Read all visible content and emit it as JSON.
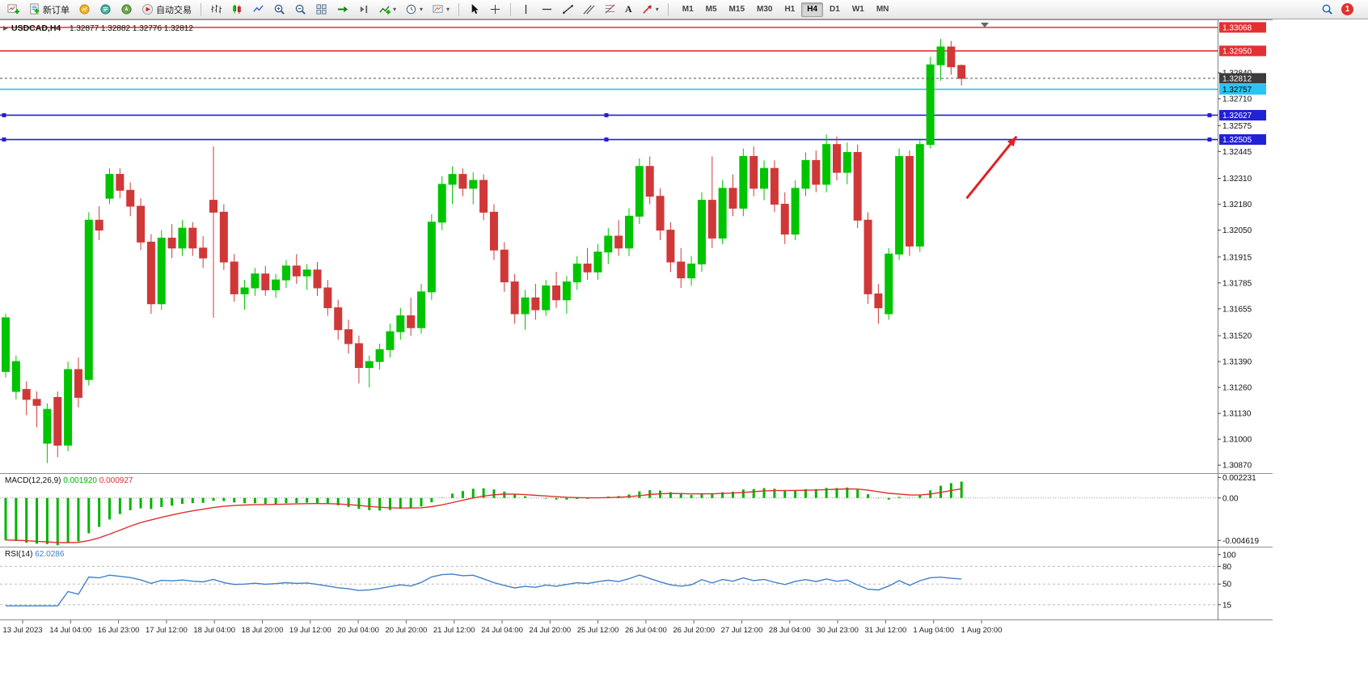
{
  "toolbar": {
    "new_order_label": "新订单",
    "autotrading_label": "自动交易",
    "timeframes": [
      "M1",
      "M5",
      "M15",
      "M30",
      "H1",
      "H4",
      "D1",
      "W1",
      "MN"
    ],
    "active_timeframe": "H4",
    "notification_count": "1"
  },
  "chart": {
    "symbol_label": "USDCAD,H4",
    "ohlc_label": "1.32877 1.32882 1.32776 1.32812"
  },
  "chart_data": {
    "type": "candlestick",
    "symbol": "USDCAD",
    "timeframe": "H4",
    "grid": "off",
    "ylim": [
      1.3083,
      1.331
    ],
    "colors": {
      "bullish": "#00C400",
      "bearish": "#D03838",
      "macd_histogram": "#00B400",
      "macd_signal": "#E03030",
      "rsi_line": "#4080C8",
      "current_price_badge": "#3C3C3C",
      "arrow": "#DD2222"
    },
    "candles": [
      [
        1.3134,
        1.3163,
        1.3131,
        1.3161
      ],
      [
        1.3124,
        1.3142,
        1.312,
        1.3139
      ],
      [
        1.3125,
        1.3129,
        1.3112,
        1.312
      ],
      [
        1.312,
        1.3124,
        1.3106,
        1.3117
      ],
      [
        1.3098,
        1.3118,
        1.3088,
        1.3115
      ],
      [
        1.3121,
        1.3124,
        1.3091,
        1.3097
      ],
      [
        1.3097,
        1.3139,
        1.3094,
        1.3135
      ],
      [
        1.3135,
        1.3141,
        1.3116,
        1.3121
      ],
      [
        1.313,
        1.3214,
        1.3127,
        1.321
      ],
      [
        1.321,
        1.3217,
        1.32,
        1.3205
      ],
      [
        1.3221,
        1.3236,
        1.3218,
        1.3233
      ],
      [
        1.3233,
        1.3236,
        1.3221,
        1.3225
      ],
      [
        1.3225,
        1.3229,
        1.3212,
        1.3217
      ],
      [
        1.3217,
        1.3221,
        1.3195,
        1.3199
      ],
      [
        1.3199,
        1.3203,
        1.3163,
        1.3168
      ],
      [
        1.3168,
        1.3205,
        1.3165,
        1.3201
      ],
      [
        1.3201,
        1.3208,
        1.3191,
        1.3196
      ],
      [
        1.3196,
        1.321,
        1.3192,
        1.3206
      ],
      [
        1.3206,
        1.3209,
        1.3192,
        1.3196
      ],
      [
        1.3196,
        1.3202,
        1.3186,
        1.3191
      ],
      [
        1.322,
        1.3247,
        1.3161,
        1.3214
      ],
      [
        1.3214,
        1.3218,
        1.3185,
        1.3189
      ],
      [
        1.3189,
        1.3193,
        1.3169,
        1.3173
      ],
      [
        1.3173,
        1.318,
        1.3165,
        1.3176
      ],
      [
        1.3176,
        1.3186,
        1.3172,
        1.3183
      ],
      [
        1.3183,
        1.3187,
        1.3172,
        1.3175
      ],
      [
        1.3175,
        1.3183,
        1.3171,
        1.318
      ],
      [
        1.318,
        1.319,
        1.3176,
        1.3187
      ],
      [
        1.3187,
        1.3193,
        1.3178,
        1.3182
      ],
      [
        1.3182,
        1.3188,
        1.3175,
        1.3185
      ],
      [
        1.3185,
        1.3189,
        1.3172,
        1.3176
      ],
      [
        1.3176,
        1.318,
        1.3162,
        1.3166
      ],
      [
        1.3166,
        1.317,
        1.315,
        1.3155
      ],
      [
        1.3155,
        1.316,
        1.3143,
        1.3148
      ],
      [
        1.3148,
        1.3152,
        1.3128,
        1.3136
      ],
      [
        1.3136,
        1.3142,
        1.3126,
        1.3139
      ],
      [
        1.3139,
        1.3148,
        1.3135,
        1.3145
      ],
      [
        1.3145,
        1.3158,
        1.3141,
        1.3154
      ],
      [
        1.3154,
        1.3166,
        1.315,
        1.3162
      ],
      [
        1.3162,
        1.3171,
        1.3152,
        1.3156
      ],
      [
        1.3156,
        1.3178,
        1.3153,
        1.3174
      ],
      [
        1.3174,
        1.3213,
        1.317,
        1.3209
      ],
      [
        1.3209,
        1.3232,
        1.3205,
        1.3228
      ],
      [
        1.3228,
        1.3237,
        1.3218,
        1.3233
      ],
      [
        1.3233,
        1.3236,
        1.3222,
        1.3226
      ],
      [
        1.3226,
        1.3234,
        1.3218,
        1.323
      ],
      [
        1.323,
        1.3233,
        1.321,
        1.3214
      ],
      [
        1.3214,
        1.3218,
        1.319,
        1.3195
      ],
      [
        1.3195,
        1.3199,
        1.3174,
        1.3179
      ],
      [
        1.3179,
        1.3183,
        1.3158,
        1.3163
      ],
      [
        1.3163,
        1.3175,
        1.3155,
        1.3171
      ],
      [
        1.3171,
        1.3178,
        1.316,
        1.3165
      ],
      [
        1.3165,
        1.318,
        1.3162,
        1.3177
      ],
      [
        1.3177,
        1.3184,
        1.3166,
        1.317
      ],
      [
        1.317,
        1.3182,
        1.3163,
        1.3179
      ],
      [
        1.3179,
        1.3192,
        1.3175,
        1.3188
      ],
      [
        1.3188,
        1.3196,
        1.318,
        1.3184
      ],
      [
        1.3184,
        1.3198,
        1.318,
        1.3194
      ],
      [
        1.3194,
        1.3206,
        1.3188,
        1.3202
      ],
      [
        1.3202,
        1.321,
        1.3192,
        1.3196
      ],
      [
        1.3196,
        1.3216,
        1.3192,
        1.3212
      ],
      [
        1.3212,
        1.3241,
        1.3208,
        1.3237
      ],
      [
        1.3237,
        1.3242,
        1.3218,
        1.3222
      ],
      [
        1.3222,
        1.3226,
        1.32,
        1.3205
      ],
      [
        1.3205,
        1.3209,
        1.3184,
        1.3189
      ],
      [
        1.3189,
        1.3196,
        1.3176,
        1.3181
      ],
      [
        1.3181,
        1.3192,
        1.3177,
        1.3188
      ],
      [
        1.3188,
        1.3224,
        1.3184,
        1.322
      ],
      [
        1.322,
        1.3242,
        1.3196,
        1.3201
      ],
      [
        1.3201,
        1.323,
        1.3198,
        1.3226
      ],
      [
        1.3226,
        1.3233,
        1.3212,
        1.3216
      ],
      [
        1.3216,
        1.3246,
        1.3212,
        1.3242
      ],
      [
        1.3242,
        1.3247,
        1.3222,
        1.3226
      ],
      [
        1.3226,
        1.324,
        1.322,
        1.3236
      ],
      [
        1.3236,
        1.324,
        1.3214,
        1.3218
      ],
      [
        1.3218,
        1.3224,
        1.3198,
        1.3203
      ],
      [
        1.3203,
        1.323,
        1.32,
        1.3226
      ],
      [
        1.3226,
        1.3244,
        1.3222,
        1.324
      ],
      [
        1.324,
        1.3245,
        1.3224,
        1.3228
      ],
      [
        1.3228,
        1.3253,
        1.3224,
        1.3248
      ],
      [
        1.3248,
        1.3252,
        1.323,
        1.3234
      ],
      [
        1.3234,
        1.3249,
        1.3228,
        1.3244
      ],
      [
        1.3244,
        1.3248,
        1.3206,
        1.321
      ],
      [
        1.321,
        1.3214,
        1.3168,
        1.3173
      ],
      [
        1.3173,
        1.3178,
        1.3158,
        1.3166
      ],
      [
        1.3163,
        1.3196,
        1.316,
        1.3193
      ],
      [
        1.3193,
        1.3246,
        1.319,
        1.3242
      ],
      [
        1.3242,
        1.3245,
        1.3192,
        1.3197
      ],
      [
        1.3197,
        1.3251,
        1.3194,
        1.3248
      ],
      [
        1.3248,
        1.3292,
        1.3246,
        1.3288
      ],
      [
        1.3288,
        1.3301,
        1.328,
        1.3297
      ],
      [
        1.3297,
        1.33,
        1.3283,
        1.3287
      ],
      [
        1.32877,
        1.32882,
        1.32776,
        1.32812
      ]
    ],
    "hlines": [
      {
        "price": 1.33068,
        "label": "1.33068",
        "color": "#E43030",
        "text_color": "#ffffff",
        "handles": false
      },
      {
        "price": 1.3295,
        "label": "1.32950",
        "color": "#E43030",
        "text_color": "#ffffff",
        "handles": false
      },
      {
        "price": 1.32757,
        "label": "1.32757",
        "color": "#29C5F2",
        "text_color": "#000000",
        "handles": false
      },
      {
        "price": 1.32627,
        "label": "1.32627",
        "color": "#2121D6",
        "text_color": "#ffffff",
        "handles": true
      },
      {
        "price": 1.32505,
        "label": "1.32505",
        "color": "#2121D6",
        "text_color": "#ffffff",
        "handles": true
      }
    ],
    "current_price": {
      "value": 1.32812,
      "label": "1.32812"
    },
    "price_scale_ticks": [
      "1.32840",
      "1.32710",
      "1.32575",
      "1.32445",
      "1.32310",
      "1.32180",
      "1.32050",
      "1.31915",
      "1.31785",
      "1.31655",
      "1.31520",
      "1.31390",
      "1.31260",
      "1.31130",
      "1.31000",
      "1.30870"
    ],
    "macd": {
      "title": "MACD(12,26,9)",
      "value_main": "0.001920",
      "value_signal": "0.000927",
      "ylim": [
        -0.0053,
        0.00262
      ],
      "scale": [
        {
          "value": 0.002231,
          "label": "0.002231"
        },
        {
          "value": 0,
          "label": "0.00"
        },
        {
          "value": -0.004619,
          "label": "-0.004619"
        }
      ]
    },
    "rsi": {
      "title": "RSI(14)",
      "value": "62.0286",
      "ylim": [
        -10,
        112
      ],
      "levels": [
        80,
        50,
        15
      ],
      "scale": [
        {
          "value": 100,
          "label": "100"
        },
        {
          "value": 80,
          "label": "80"
        },
        {
          "value": 50,
          "label": "50"
        },
        {
          "value": 15,
          "label": "15"
        }
      ]
    },
    "time_labels": [
      "13 Jul 2023",
      "14 Jul 04:00",
      "16 Jul 23:00",
      "17 Jul 12:00",
      "18 Jul 04:00",
      "18 Jul 20:00",
      "19 Jul 12:00",
      "20 Jul 04:00",
      "20 Jul 20:00",
      "21 Jul 12:00",
      "24 Jul 04:00",
      "24 Jul 20:00",
      "25 Jul 12:00",
      "26 Jul 04:00",
      "26 Jul 20:00",
      "27 Jul 12:00",
      "28 Jul 04:00",
      "30 Jul 23:00",
      "31 Jul 12:00",
      "1 Aug 04:00",
      "1 Aug 20:00"
    ],
    "annotations": [
      {
        "type": "arrow",
        "from_bar": 92.5,
        "from_price": 1.3221,
        "to_bar": 97.3,
        "to_price": 1.3252,
        "color": "#DD2222"
      }
    ]
  }
}
